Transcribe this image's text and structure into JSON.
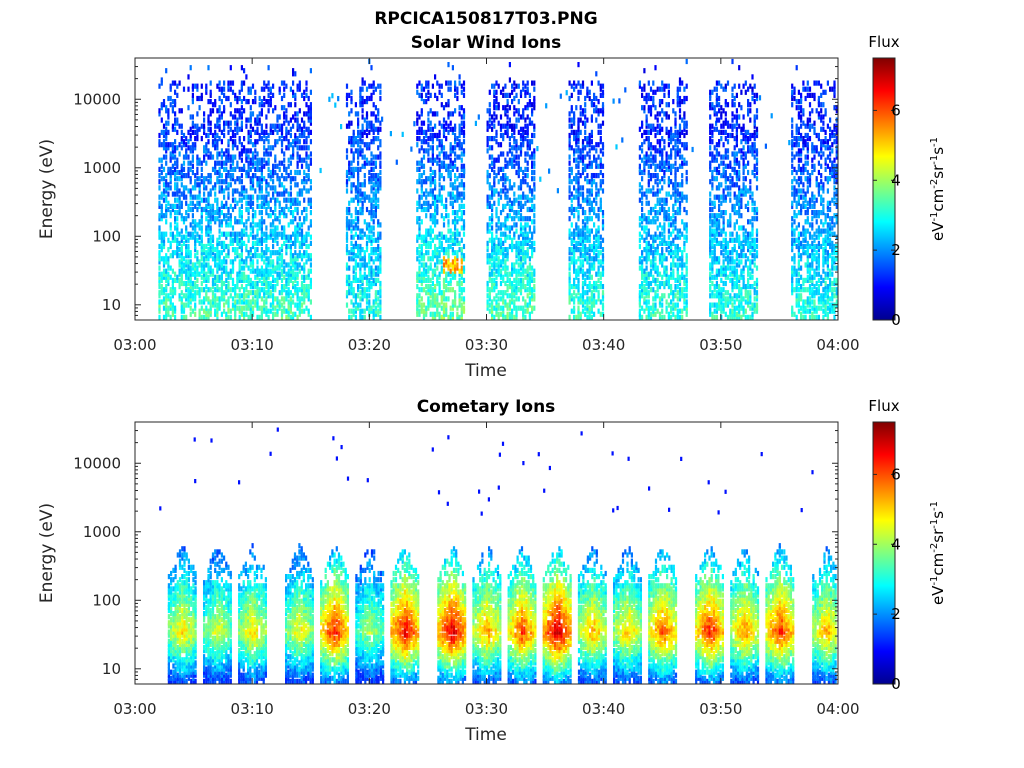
{
  "figure": {
    "title": "RPCICA150817T03.PNG"
  },
  "chart_data": [
    {
      "type": "heatmap",
      "title": "Solar Wind Ions",
      "xlabel": "Time",
      "ylabel": "Energy (eV)",
      "x_ticks": [
        "03:00",
        "03:10",
        "03:20",
        "03:30",
        "03:40",
        "03:50",
        "04:00"
      ],
      "xlim": [
        "03:00",
        "04:00"
      ],
      "y_ticks": [
        "10",
        "100",
        "1000",
        "10000"
      ],
      "y_scale": "log",
      "ylim": [
        6,
        40000
      ],
      "colorbar": {
        "title": "Flux",
        "label": "eV-1cm-2sr-1s-1",
        "ticks": [
          "0",
          "2",
          "4",
          "6"
        ],
        "range": [
          0,
          7.5
        ],
        "colormap": "jet"
      },
      "bursts": [
        {
          "start": "03:02",
          "end": "03:15",
          "flux_low_energy": 3.3,
          "flux_high_energy": 1.3
        },
        {
          "start": "03:18",
          "end": "03:21",
          "flux_low_energy": 3.0,
          "flux_high_energy": 1.3
        },
        {
          "start": "03:24",
          "end": "03:28",
          "flux_low_energy": 3.6,
          "flux_high_energy": 1.3
        },
        {
          "start": "03:30",
          "end": "03:34",
          "flux_low_energy": 3.4,
          "flux_high_energy": 1.2
        },
        {
          "start": "03:37",
          "end": "03:40",
          "flux_low_energy": 3.2,
          "flux_high_energy": 1.2
        },
        {
          "start": "03:43",
          "end": "03:47",
          "flux_low_energy": 3.2,
          "flux_high_energy": 1.2
        },
        {
          "start": "03:49",
          "end": "03:53",
          "flux_low_energy": 3.1,
          "flux_high_energy": 1.2
        },
        {
          "start": "03:56",
          "end": "04:00",
          "flux_low_energy": 3.1,
          "flux_high_energy": 1.2
        }
      ],
      "peak": {
        "time": "03:27",
        "energy": 35,
        "flux": 5.8
      }
    },
    {
      "type": "heatmap",
      "title": "Cometary Ions",
      "xlabel": "Time",
      "ylabel": "Energy (eV)",
      "x_ticks": [
        "03:00",
        "03:10",
        "03:20",
        "03:30",
        "03:40",
        "03:50",
        "04:00"
      ],
      "xlim": [
        "03:00",
        "04:00"
      ],
      "y_ticks": [
        "10",
        "100",
        "1000",
        "10000"
      ],
      "y_scale": "log",
      "ylim": [
        6,
        40000
      ],
      "colorbar": {
        "title": "Flux",
        "label": "eV-1cm-2sr-1s-1",
        "ticks": [
          "0",
          "2",
          "4",
          "6"
        ],
        "range": [
          0,
          7.5
        ],
        "colormap": "jet"
      },
      "peaks": [
        {
          "time": "03:04",
          "flux": 5.0
        },
        {
          "time": "03:07",
          "flux": 4.6
        },
        {
          "time": "03:10",
          "flux": 5.0
        },
        {
          "time": "03:14",
          "flux": 4.8
        },
        {
          "time": "03:17",
          "flux": 6.5
        },
        {
          "time": "03:20",
          "flux": 4.2
        },
        {
          "time": "03:23",
          "flux": 6.8
        },
        {
          "time": "03:27",
          "flux": 7.0
        },
        {
          "time": "03:30",
          "flux": 5.6
        },
        {
          "time": "03:33",
          "flux": 6.2
        },
        {
          "time": "03:36",
          "flux": 7.2
        },
        {
          "time": "03:39",
          "flux": 5.4
        },
        {
          "time": "03:42",
          "flux": 5.2
        },
        {
          "time": "03:45",
          "flux": 6.0
        },
        {
          "time": "03:49",
          "flux": 6.5
        },
        {
          "time": "03:52",
          "flux": 5.6
        },
        {
          "time": "03:55",
          "flux": 6.4
        },
        {
          "time": "03:59",
          "flux": 5.4
        }
      ]
    }
  ]
}
